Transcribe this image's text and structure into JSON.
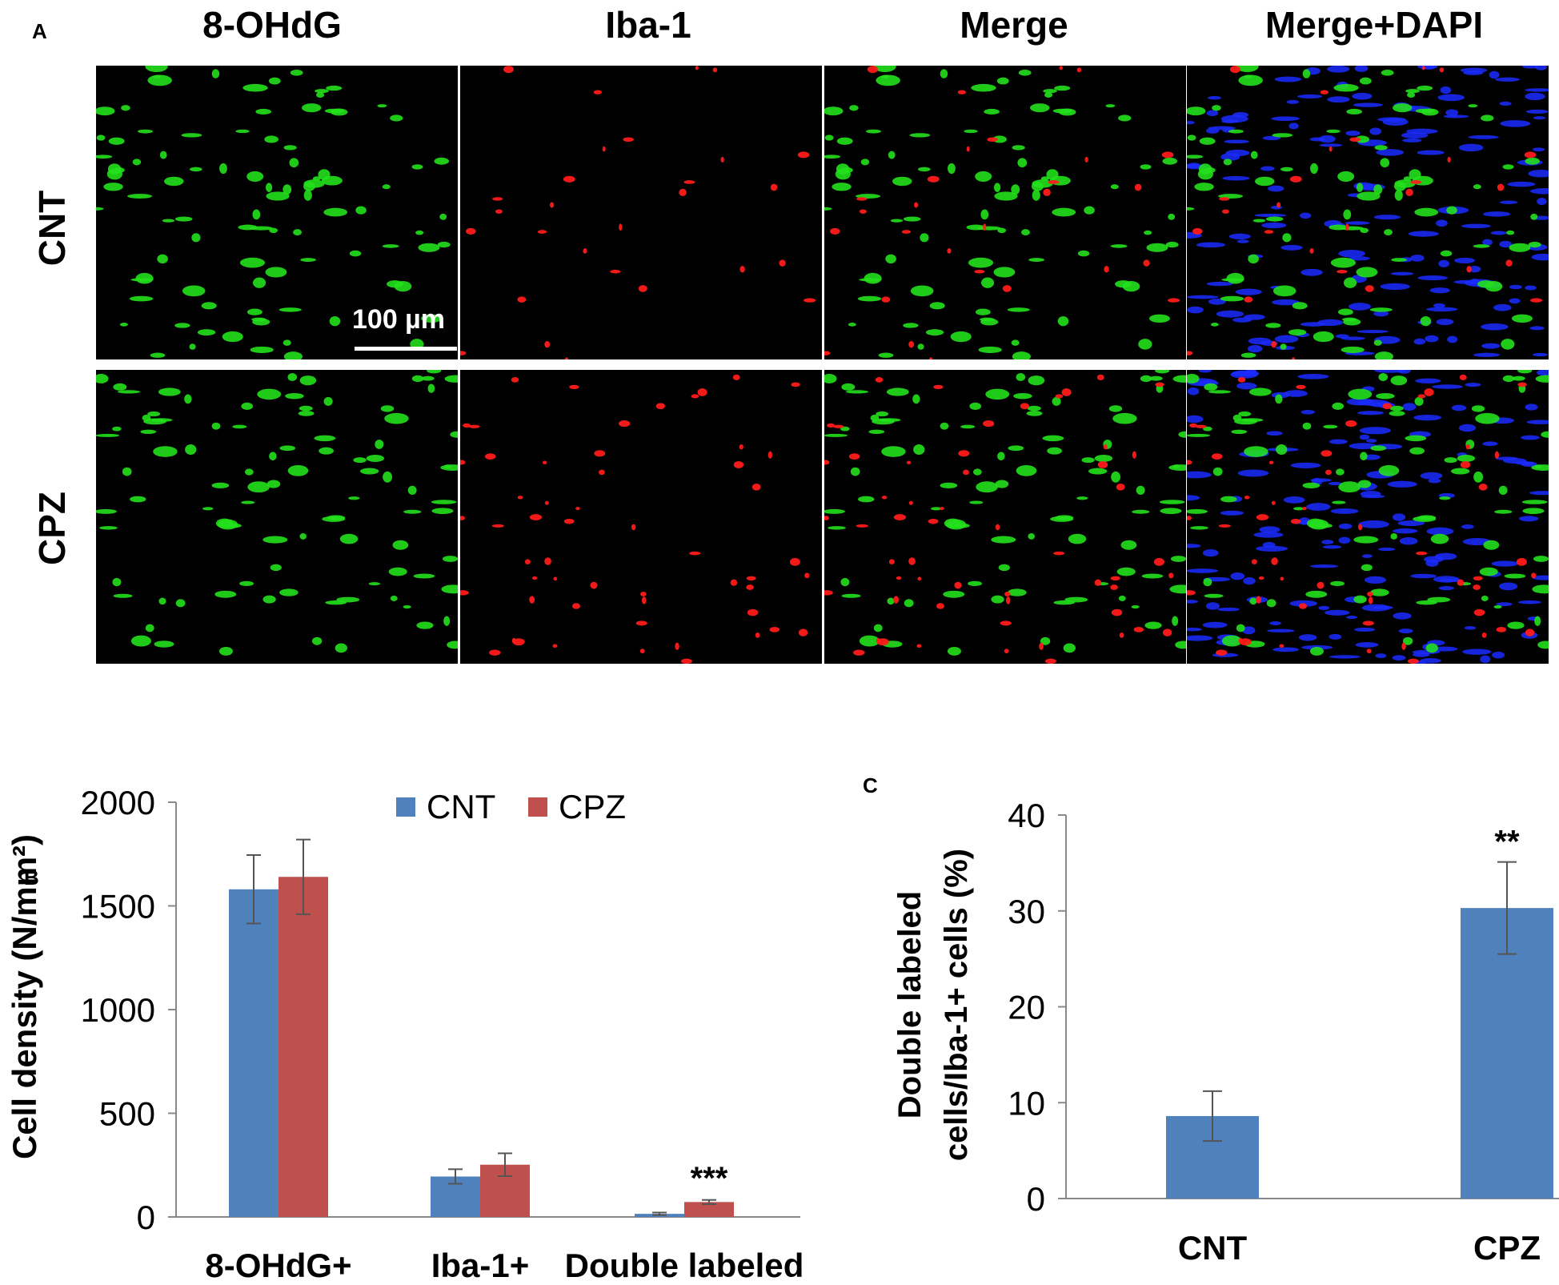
{
  "panelA": {
    "letter": "A",
    "columns": [
      "8-OHdG",
      "Iba-1",
      "Merge",
      "Merge+DAPI"
    ],
    "rows": [
      "CNT",
      "CPZ"
    ],
    "scale_bar": "100 µm"
  },
  "colors": {
    "cnt": "#4f81bd",
    "cpz": "#c0504d",
    "green_stain": "#22e01c",
    "red_stain": "#ff1a1a",
    "blue_stain": "#1a2cff",
    "error_bar": "#555555"
  },
  "chart_data": [
    {
      "panel": "B",
      "type": "bar",
      "categories": [
        "8-OHdG+",
        "Iba-1+",
        "Double labeled"
      ],
      "series": [
        {
          "name": "CNT",
          "values": [
            1580,
            195,
            15
          ],
          "errors": [
            165,
            35,
            6
          ]
        },
        {
          "name": "CPZ",
          "values": [
            1640,
            252,
            72
          ],
          "errors": [
            180,
            55,
            10
          ]
        }
      ],
      "ylabel": "Cell density (N/mm²)",
      "ylim": [
        0,
        2000
      ],
      "yticks": [
        0,
        500,
        1000,
        1500,
        2000
      ],
      "annotations": [
        {
          "category": "Double labeled",
          "text": "***"
        }
      ],
      "legend": "top-center"
    },
    {
      "panel": "C",
      "type": "bar",
      "categories": [
        "CNT",
        "CPZ"
      ],
      "values": [
        8.6,
        30.3
      ],
      "errors": [
        2.6,
        4.8
      ],
      "ylabel_lines": [
        "Double labeled",
        "cells/Iba-1+ cells (%)"
      ],
      "ylim": [
        0,
        40
      ],
      "yticks": [
        0,
        10,
        20,
        30,
        40
      ],
      "annotations": [
        {
          "category": "CPZ",
          "text": "**"
        }
      ]
    }
  ]
}
